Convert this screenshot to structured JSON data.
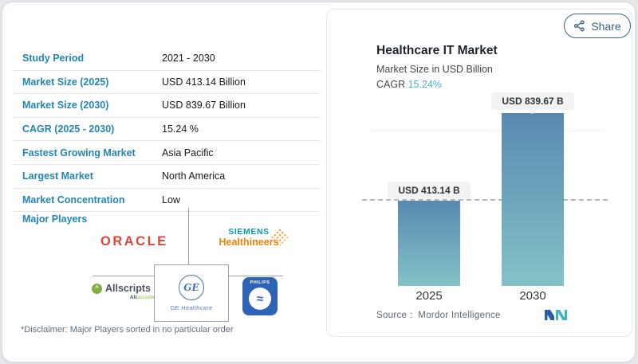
{
  "left_panel": {
    "rows": [
      {
        "label": "Study Period",
        "value": "2021 - 2030"
      },
      {
        "label": "Market Size (2025)",
        "value": "USD 413.14 Billion"
      },
      {
        "label": "Market Size (2030)",
        "value": "USD 839.67 Billion"
      },
      {
        "label": "CAGR (2025 - 2030)",
        "value": "15.24 %"
      },
      {
        "label": "Fastest Growing Market",
        "value": "Asia Pacific"
      },
      {
        "label": "Largest Market",
        "value": "North America"
      },
      {
        "label": "Market Concentration",
        "value": "Low"
      }
    ],
    "major_players_label": "Major Players",
    "players_logos": {
      "oracle": "ORACLE",
      "siemens_line1": "SIEMENS",
      "siemens_line2": "Healthineers",
      "allscripts_name": "Allscripts",
      "allscripts_icon_glyph": "^",
      "allscripts_tagline_bold": "All",
      "allscripts_tagline_script": "possible",
      "ge_monogram": "GE",
      "ge_text": "GE Healthcare",
      "philips_word": "PHILIPS",
      "philips_wave_glyph": "≈"
    },
    "disclaimer": "*Disclaimer: Major Players sorted in no particular order",
    "label_color": "#2585b2"
  },
  "right_panel": {
    "share_label": "Share",
    "title": "Healthcare IT Market",
    "subtitle": "Market Size in USD Billion",
    "cagr_label": "CAGR",
    "cagr_value": "15.24%",
    "cagr_value_color": "#4fb0c6",
    "source_label": "Source :",
    "source_value": "Mordor Intelligence"
  },
  "chart_data": {
    "type": "bar",
    "categories": [
      "2025",
      "2030"
    ],
    "values": [
      413.14,
      839.67
    ],
    "bar_labels": [
      "USD 413.14 B",
      "USD 839.67 B"
    ],
    "title": "Healthcare IT Market",
    "ylabel": "Market Size in USD Billion",
    "cagr_percent": 15.24,
    "ylim": [
      0,
      900
    ],
    "grid": "off",
    "threshold_line_at_first_value": true,
    "bar_gradient_top": "#588ab1",
    "bar_gradient_bottom": "#84c2c8",
    "dashed_line_color": "#b2b8be"
  }
}
